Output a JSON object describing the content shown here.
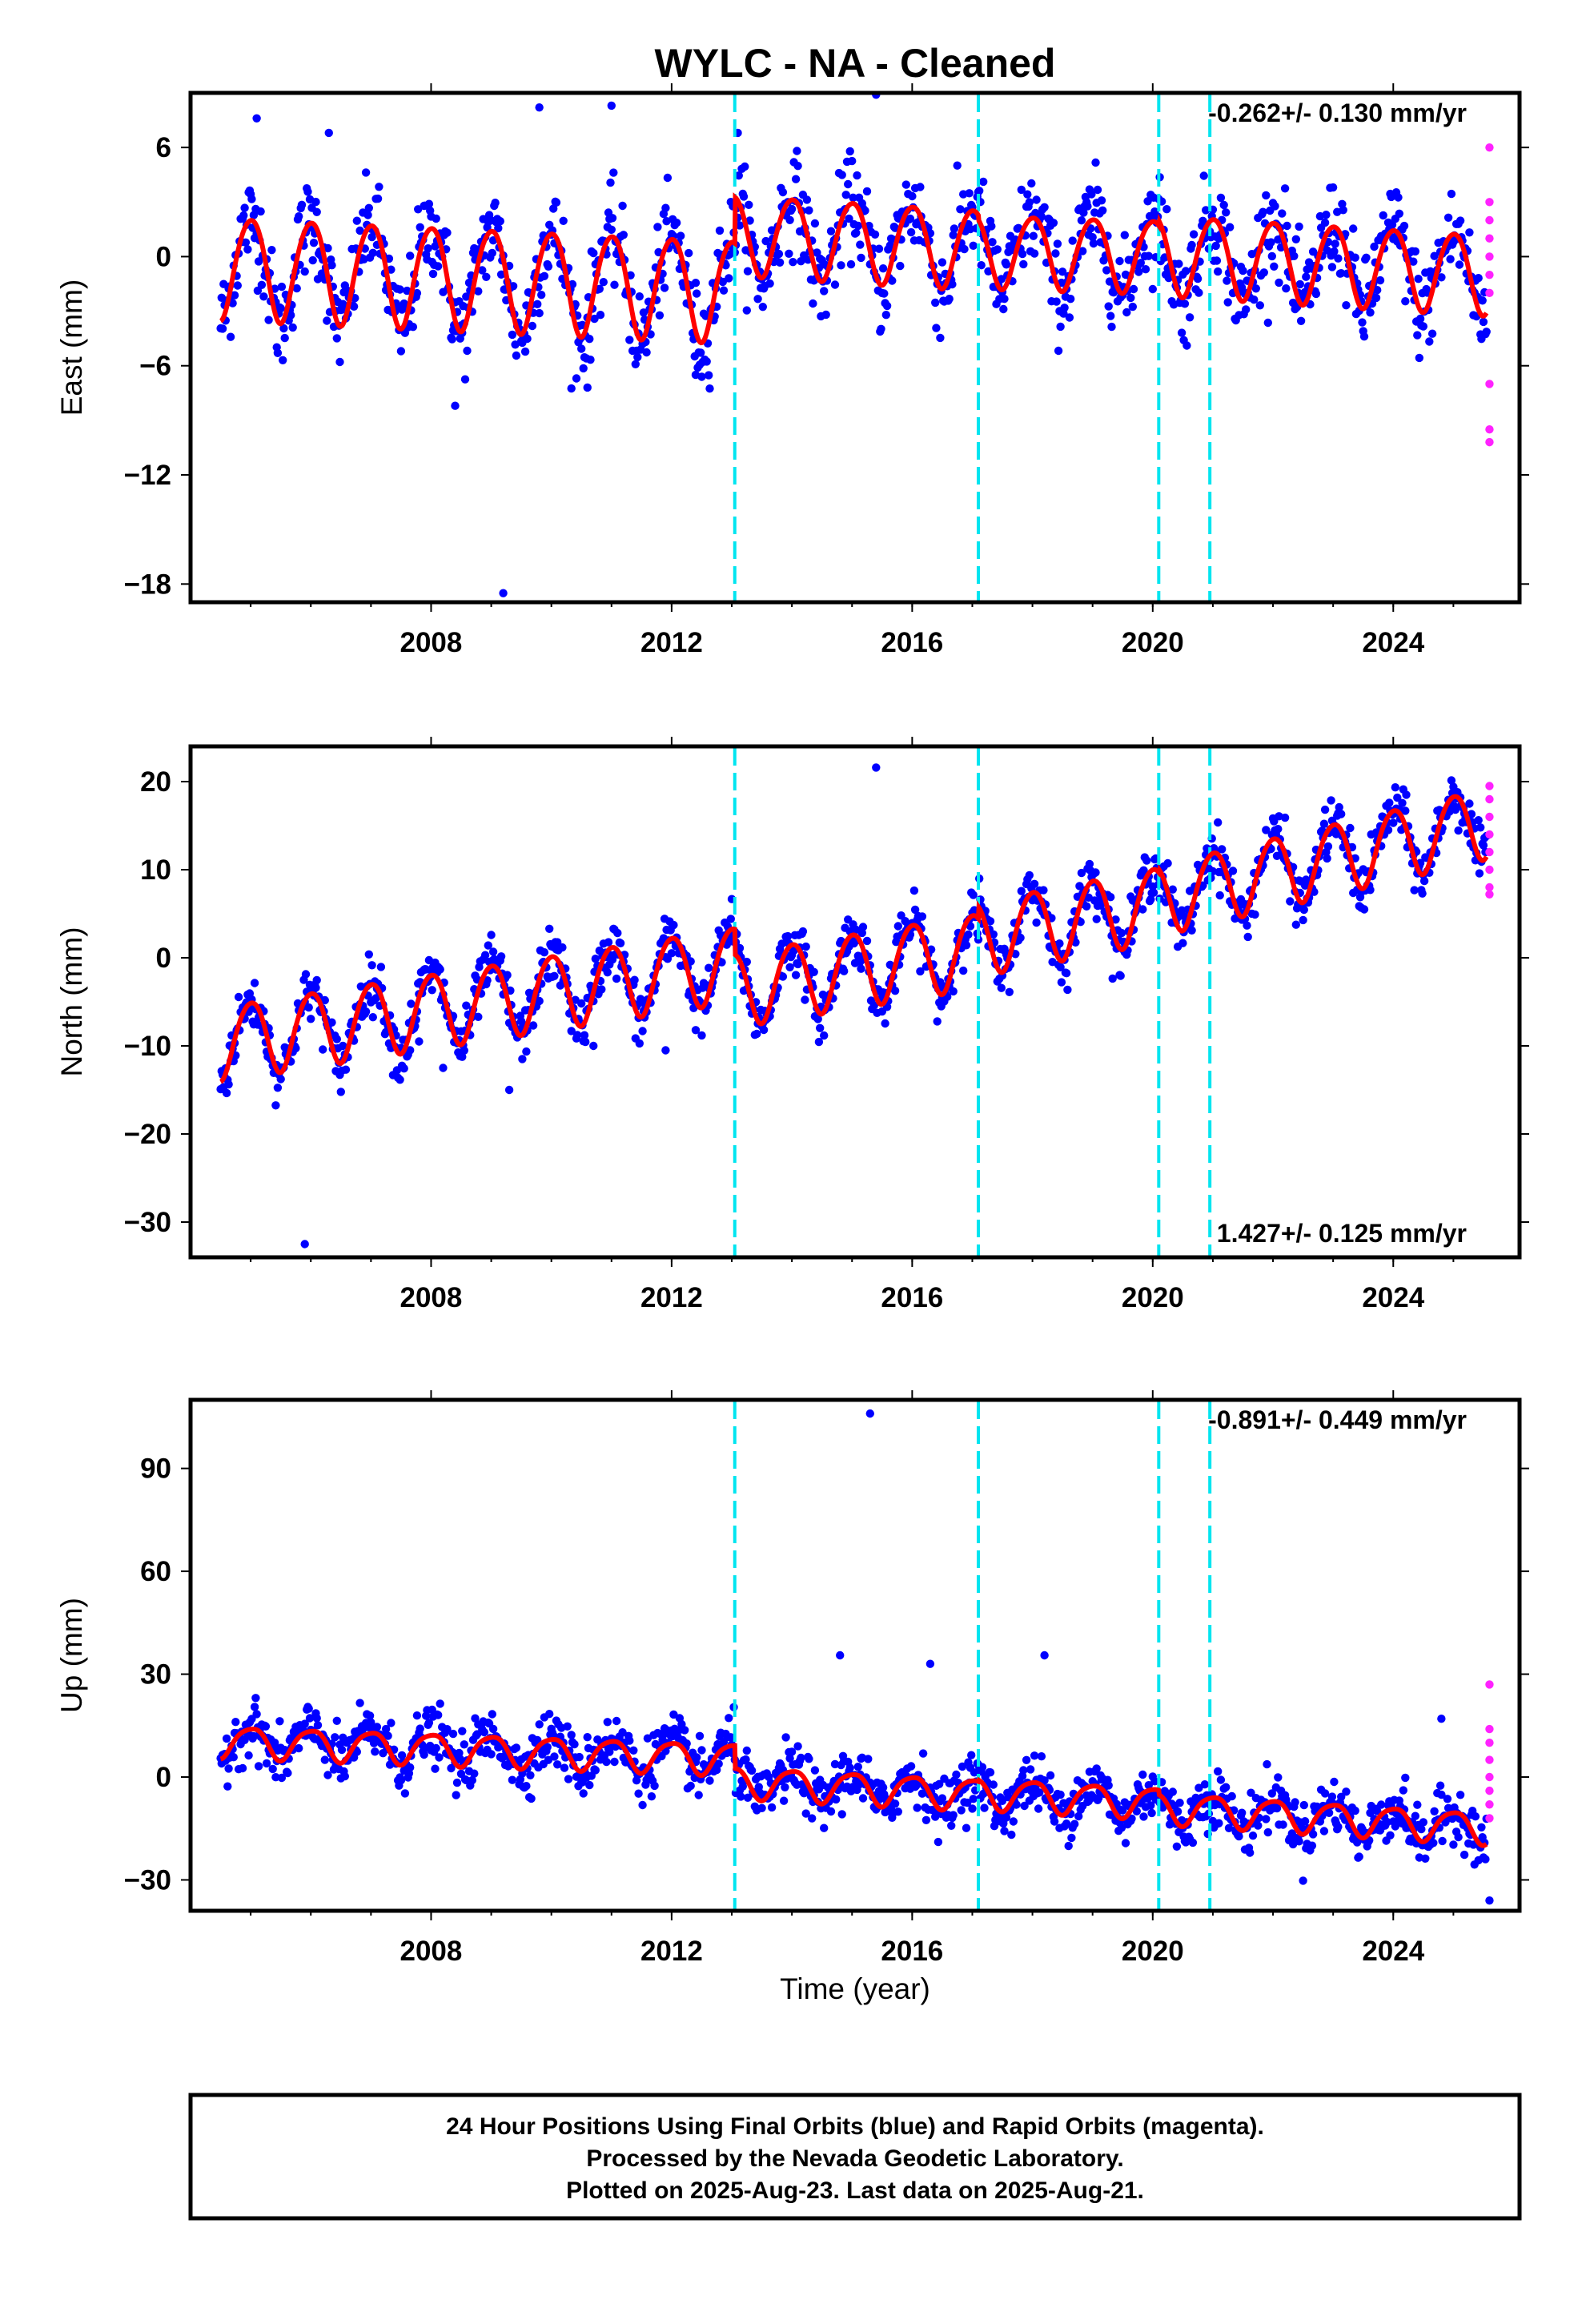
{
  "title": "WYLC  - NA - Cleaned",
  "colors": {
    "final_points": "#0000ff",
    "rapid_points": "#ff22ff",
    "model_line": "#ff0000",
    "offset_lines": "#00e5f0",
    "frame": "#000000"
  },
  "chart_data": [
    {
      "type": "scatter",
      "name": "east",
      "ylabel": "East (mm)",
      "ylim": [
        -19,
        9
      ],
      "yticks": [
        6,
        0,
        -6,
        -12,
        -18
      ],
      "ytick_labels": [
        "6",
        "0",
        "−6",
        "−12",
        "−18"
      ],
      "xlim": [
        2004.0,
        2026.1
      ],
      "xticks": [
        2008,
        2012,
        2016,
        2020,
        2024
      ],
      "xtick_labels": [
        "2008",
        "2012",
        "2016",
        "2020",
        "2024"
      ],
      "rate_text": "-0.262+/- 0.130 mm/yr",
      "offset_epochs": [
        2013.05,
        2017.1,
        2020.1,
        2020.95
      ],
      "model": {
        "start": 2004.5,
        "end": 2025.55,
        "segments": [
          {
            "from": 2004.5,
            "to": 2013.05,
            "intercept": -0.5,
            "slope": -0.15,
            "amp_annual": 2.8,
            "amp_semi": 0.25
          },
          {
            "from": 2013.05,
            "to": 2017.1,
            "intercept": 1.3,
            "slope": -0.2,
            "amp_annual": 2.2,
            "amp_semi": 0.2
          },
          {
            "from": 2017.1,
            "to": 2020.1,
            "intercept": 0.4,
            "slope": -0.1,
            "amp_annual": 2.0,
            "amp_semi": 0.2
          },
          {
            "from": 2020.1,
            "to": 2025.55,
            "intercept": 0.2,
            "slope": -0.2,
            "amp_annual": 2.2,
            "amp_semi": 0.2
          }
        ]
      },
      "scatter_spread": 1.3,
      "outliers": [
        [
          2005.1,
          7.6
        ],
        [
          2009.8,
          8.2
        ],
        [
          2011.0,
          8.3
        ],
        [
          2015.4,
          8.9
        ],
        [
          2009.2,
          -18.5
        ],
        [
          2008.4,
          -8.2
        ],
        [
          2010.6,
          -7.2
        ],
        [
          2012.4,
          -6.5
        ],
        [
          2006.3,
          6.8
        ],
        [
          2013.1,
          6.8
        ]
      ],
      "rapid": [
        [
          2025.6,
          6.0
        ],
        [
          2025.6,
          3.0
        ],
        [
          2025.6,
          2.0
        ],
        [
          2025.6,
          1.0
        ],
        [
          2025.6,
          0.0
        ],
        [
          2025.6,
          -1.0
        ],
        [
          2025.6,
          -2.0
        ],
        [
          2025.6,
          -7.0
        ],
        [
          2025.6,
          -9.5
        ],
        [
          2025.6,
          -10.2
        ]
      ]
    },
    {
      "type": "scatter",
      "name": "north",
      "ylabel": "North (mm)",
      "ylim": [
        -34,
        24
      ],
      "yticks": [
        20,
        10,
        0,
        -10,
        -20,
        -30
      ],
      "ytick_labels": [
        "20",
        "10",
        "0",
        "−10",
        "−20",
        "−30"
      ],
      "xlim": [
        2004.0,
        2026.1
      ],
      "xticks": [
        2008,
        2012,
        2016,
        2020,
        2024
      ],
      "xtick_labels": [
        "2008",
        "2012",
        "2016",
        "2020",
        "2024"
      ],
      "rate_text": "1.427+/- 0.125 mm/yr",
      "offset_epochs": [
        2013.05,
        2017.1,
        2020.1,
        2020.95
      ],
      "model": {
        "start": 2004.5,
        "end": 2025.55,
        "segments": [
          {
            "from": 2004.5,
            "to": 2013.05,
            "intercept": -9.5,
            "slope": 1.05,
            "amp_annual": 4.2,
            "amp_semi": 0.4
          },
          {
            "from": 2013.05,
            "to": 2017.1,
            "intercept": -3.4,
            "slope": 1.1,
            "amp_annual": 4.2,
            "amp_semi": 0.4
          },
          {
            "from": 2017.1,
            "to": 2020.1,
            "intercept": 2.4,
            "slope": 1.3,
            "amp_annual": 4.2,
            "amp_semi": 0.4
          },
          {
            "from": 2020.1,
            "to": 2025.55,
            "intercept": 6.8,
            "slope": 1.6,
            "amp_annual": 4.0,
            "amp_semi": 0.4
          }
        ]
      },
      "scatter_spread": 1.5,
      "outliers": [
        [
          2015.4,
          21.6
        ],
        [
          2005.9,
          -32.5
        ],
        [
          2009.3,
          -15.0
        ],
        [
          2008.2,
          -12.5
        ],
        [
          2010.7,
          -10.0
        ],
        [
          2011.9,
          -10.5
        ],
        [
          2007.8,
          -9.5
        ]
      ],
      "rapid": [
        [
          2025.6,
          19.5
        ],
        [
          2025.6,
          18.0
        ],
        [
          2025.6,
          16.0
        ],
        [
          2025.6,
          14.0
        ],
        [
          2025.6,
          12.0
        ],
        [
          2025.6,
          10.0
        ],
        [
          2025.6,
          8.0
        ],
        [
          2025.6,
          7.2
        ]
      ]
    },
    {
      "type": "scatter",
      "name": "up",
      "ylabel": "Up (mm)",
      "ylim": [
        -39,
        110
      ],
      "yticks": [
        90,
        60,
        30,
        0,
        -30
      ],
      "ytick_labels": [
        "90",
        "60",
        "30",
        "0",
        "−30"
      ],
      "xlim": [
        2004.0,
        2026.1
      ],
      "xticks": [
        2008,
        2012,
        2016,
        2020,
        2024
      ],
      "xtick_labels": [
        "2008",
        "2012",
        "2016",
        "2020",
        "2024"
      ],
      "xlabel": "Time (year)",
      "rate_text": "-0.891+/- 0.449 mm/yr",
      "offset_epochs": [
        2013.05,
        2017.1,
        2020.1,
        2020.95
      ],
      "model": {
        "start": 2004.5,
        "end": 2025.55,
        "segments": [
          {
            "from": 2004.5,
            "to": 2013.05,
            "intercept": 10.5,
            "slope": -0.6,
            "amp_annual": 4.5,
            "amp_semi": 0.8
          },
          {
            "from": 2013.05,
            "to": 2017.1,
            "intercept": -1.3,
            "slope": -0.9,
            "amp_annual": 4.5,
            "amp_semi": 0.8
          },
          {
            "from": 2017.1,
            "to": 2020.1,
            "intercept": -4.5,
            "slope": -1.0,
            "amp_annual": 4.5,
            "amp_semi": 0.8
          },
          {
            "from": 2020.1,
            "to": 2025.55,
            "intercept": -8.8,
            "slope": -1.1,
            "amp_annual": 4.5,
            "amp_semi": 0.8
          }
        ]
      },
      "scatter_spread": 4.0,
      "outliers": [
        [
          2015.3,
          106.0
        ],
        [
          2014.8,
          35.5
        ],
        [
          2016.3,
          33.0
        ],
        [
          2018.2,
          35.5
        ],
        [
          2024.8,
          17.0
        ],
        [
          2025.6,
          -36.0
        ]
      ],
      "rapid": [
        [
          2025.6,
          27.0
        ],
        [
          2025.6,
          14.0
        ],
        [
          2025.6,
          10.0
        ],
        [
          2025.6,
          5.0
        ],
        [
          2025.6,
          0.0
        ],
        [
          2025.6,
          -4.0
        ],
        [
          2025.6,
          -8.0
        ],
        [
          2025.6,
          -12.0
        ]
      ]
    }
  ],
  "footer": {
    "line1": "24 Hour Positions Using Final Orbits (blue) and Rapid Orbits (magenta).",
    "line2": "Processed by the Nevada Geodetic Laboratory.",
    "line3": "Plotted on 2025-Aug-23. Last data on 2025-Aug-21."
  }
}
